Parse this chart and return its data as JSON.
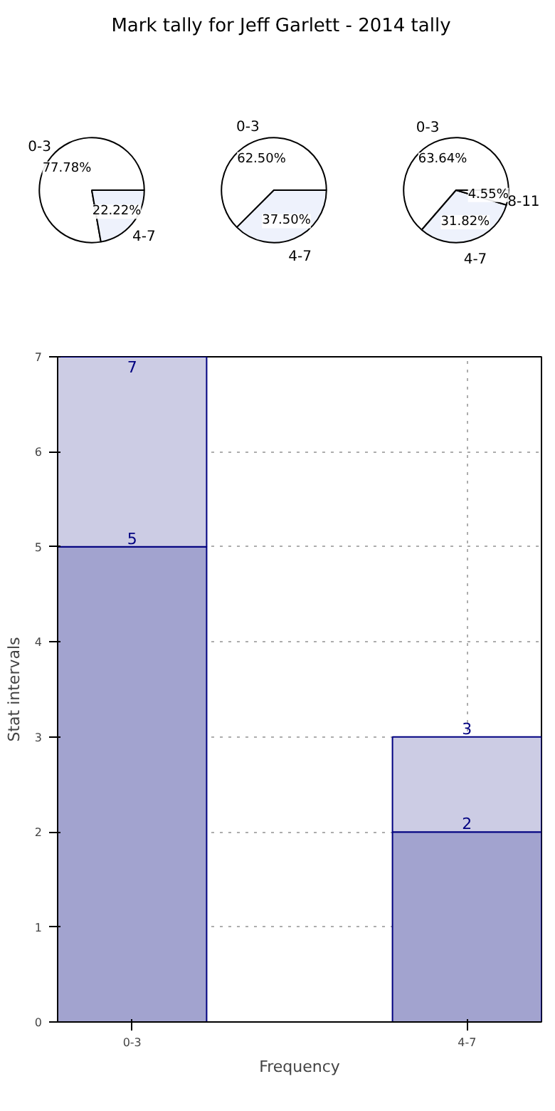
{
  "chart_data": [
    {
      "type": "pie",
      "title": "Mark tally for Jeff Garlett - 2014 tally",
      "categories": [
        "0-3",
        "4-7"
      ],
      "values": [
        77.78,
        22.22
      ],
      "colors": [
        "#ffffff",
        "#eef2fc"
      ],
      "value_labels": [
        "77.78%",
        "22.22%"
      ]
    },
    {
      "type": "pie",
      "categories": [
        "0-3",
        "4-7"
      ],
      "values": [
        62.5,
        37.5
      ],
      "colors": [
        "#ffffff",
        "#eef2fc"
      ],
      "value_labels": [
        "62.50%",
        "37.50%"
      ]
    },
    {
      "type": "pie",
      "categories": [
        "0-3",
        "4-7",
        "8-11"
      ],
      "values": [
        63.64,
        31.82,
        4.55
      ],
      "colors": [
        "#ffffff",
        "#eef2fc",
        "#ffffff"
      ],
      "value_labels": [
        "63.64%",
        "31.82%",
        "4.55%"
      ]
    },
    {
      "type": "bar",
      "stacked": true,
      "categories": [
        "0-3",
        "4-7"
      ],
      "xlabel": "Frequency",
      "ylabel": "Stat intervals",
      "ylim": [
        0,
        7
      ],
      "yticks": [
        0,
        1,
        2,
        3,
        4,
        5,
        6,
        7
      ],
      "grid": true,
      "totals": [
        "7",
        "3"
      ],
      "series": [
        {
          "color": "#a2a3cf",
          "values": [
            5,
            2
          ],
          "value_labels": [
            "5",
            "2"
          ]
        },
        {
          "color": "#cccce4",
          "values": [
            2,
            1
          ]
        }
      ]
    }
  ]
}
